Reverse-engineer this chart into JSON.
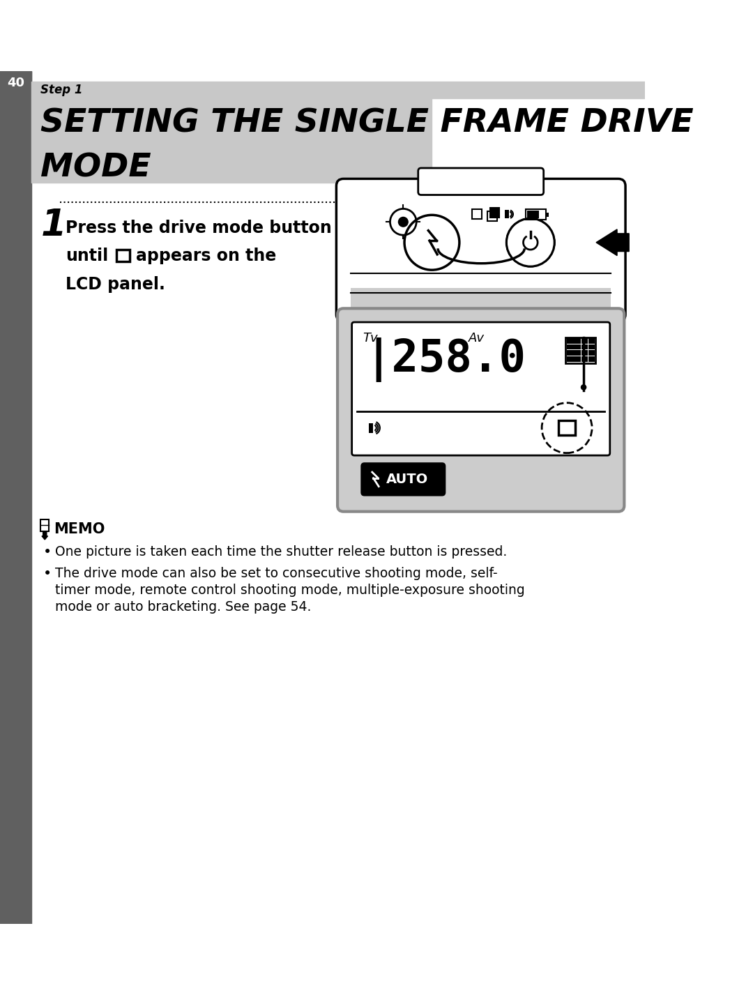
{
  "page_number": "40",
  "step_label": "Step 1",
  "title_line1": "SETTING THE SINGLE FRAME DRIVE",
  "title_line2": "MODE",
  "memo_title": "MEMO",
  "memo_bullet1": "One picture is taken each time the shutter release button is pressed.",
  "memo_bullet2a": "The drive mode can also be set to consecutive shooting mode, self-",
  "memo_bullet2b": "timer mode, remote control shooting mode, multiple-exposure shooting",
  "memo_bullet2c": "mode or auto bracketing. See page 54.",
  "bg_color": "#ffffff",
  "header_bg": "#c8c8c8",
  "sidebar_bg": "#606060",
  "text_color": "#000000",
  "gray_light": "#cccccc",
  "gray_mid": "#999999"
}
